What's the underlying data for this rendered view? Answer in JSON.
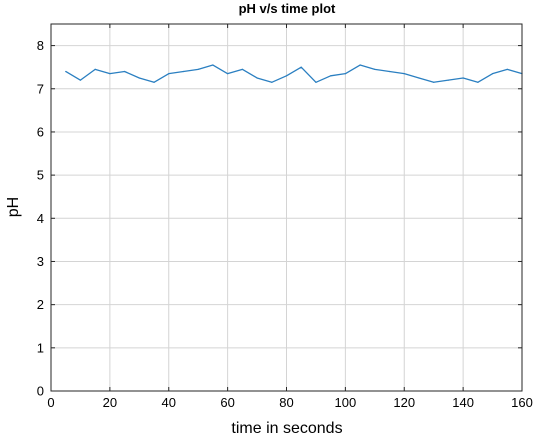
{
  "chart_data": {
    "type": "line",
    "title": "pH v/s time plot",
    "xlabel": "time in seconds",
    "ylabel": "pH",
    "xlim": [
      0,
      160
    ],
    "ylim": [
      0,
      8.5
    ],
    "xticks": [
      0,
      20,
      40,
      60,
      80,
      100,
      120,
      140,
      160
    ],
    "yticks": [
      0,
      1,
      2,
      3,
      4,
      5,
      6,
      7,
      8
    ],
    "grid": true,
    "line_color": "#2a7fc1",
    "series": [
      {
        "x": [
          5,
          10,
          15,
          20,
          25,
          30,
          35,
          40,
          45,
          50,
          55,
          60,
          65,
          70,
          75,
          80,
          85,
          90,
          95,
          100,
          105,
          110,
          115,
          120,
          125,
          130,
          135,
          140,
          145,
          150,
          155,
          160
        ],
        "values": [
          7.4,
          7.2,
          7.45,
          7.35,
          7.4,
          7.25,
          7.15,
          7.35,
          7.4,
          7.45,
          7.55,
          7.35,
          7.45,
          7.25,
          7.15,
          7.3,
          7.5,
          7.15,
          7.3,
          7.35,
          7.55,
          7.45,
          7.4,
          7.35,
          7.25,
          7.15,
          7.2,
          7.25,
          7.15,
          7.35,
          7.45,
          7.35
        ]
      }
    ]
  }
}
